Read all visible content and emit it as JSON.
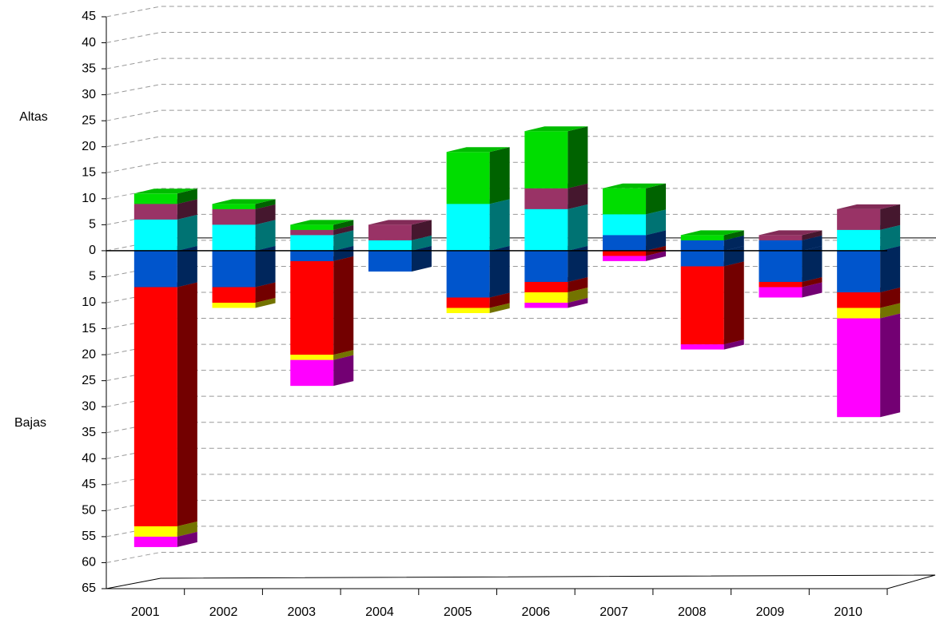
{
  "chart_data": {
    "type": "bar3d_stacked",
    "axis_labels": [
      "Altas",
      "Bajas"
    ],
    "categories": [
      "2001",
      "2002",
      "2003",
      "2004",
      "2005",
      "2006",
      "2007",
      "2008",
      "2009",
      "2010"
    ],
    "series": [
      {
        "color": "#0055cc",
        "values": [
          0,
          0,
          0,
          0,
          0,
          0,
          3,
          2,
          2,
          0
        ]
      },
      {
        "color": "#00ffff",
        "values": [
          6,
          5,
          3,
          2,
          9,
          8,
          4,
          0,
          0,
          4
        ]
      },
      {
        "color": "#993366",
        "values": [
          3,
          3,
          1,
          3,
          0,
          4,
          0,
          0,
          1,
          4
        ]
      },
      {
        "color": "#00dd00",
        "values": [
          2,
          1,
          1,
          0,
          10,
          11,
          5,
          1,
          0,
          0
        ]
      },
      {
        "color": "#0055cc",
        "values": [
          -7,
          -7,
          -2,
          -4,
          -9,
          -6,
          0,
          -3,
          -6,
          -8
        ]
      },
      {
        "color": "#ff0000",
        "values": [
          -46,
          -3,
          -18,
          0,
          -2,
          -2,
          -1,
          -15,
          -1,
          -3
        ]
      },
      {
        "color": "#ffff00",
        "values": [
          -2,
          -1,
          -1,
          0,
          -1,
          -2,
          0,
          0,
          0,
          -2
        ]
      },
      {
        "color": "#ff00ff",
        "values": [
          -2,
          0,
          -5,
          0,
          0,
          -1,
          -1,
          -1,
          -2,
          -19
        ]
      }
    ],
    "ylim": [
      -65,
      45
    ],
    "yticks": [
      45,
      40,
      35,
      30,
      25,
      20,
      15,
      10,
      5,
      0,
      {
        "value": -5,
        "label": "5"
      },
      {
        "value": -10,
        "label": "10"
      },
      {
        "value": -15,
        "label": "15"
      },
      {
        "value": -20,
        "label": "20"
      },
      {
        "value": -25,
        "label": "25"
      },
      {
        "value": -30,
        "label": "30"
      },
      {
        "value": -35,
        "label": "35"
      },
      {
        "value": -40,
        "label": "40"
      },
      {
        "value": -45,
        "label": "45"
      },
      {
        "value": -50,
        "label": "50"
      },
      {
        "value": -55,
        "label": "55"
      },
      {
        "value": -60,
        "label": "60"
      },
      {
        "value": -65,
        "label": "65"
      }
    ],
    "grid": true
  }
}
